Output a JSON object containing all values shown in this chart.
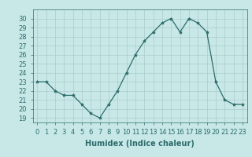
{
  "x": [
    0,
    1,
    2,
    3,
    4,
    5,
    6,
    7,
    8,
    9,
    10,
    11,
    12,
    13,
    14,
    15,
    16,
    17,
    18,
    19,
    20,
    21,
    22,
    23
  ],
  "y": [
    23,
    23,
    22,
    21.5,
    21.5,
    20.5,
    19.5,
    19,
    20.5,
    22,
    24,
    26,
    27.5,
    28.5,
    29.5,
    30,
    28.5,
    30,
    29.5,
    28.5,
    23,
    21,
    20.5,
    20.5
  ],
  "xlabel": "Humidex (Indice chaleur)",
  "ylim": [
    18.5,
    31
  ],
  "xlim": [
    -0.5,
    23.5
  ],
  "yticks": [
    19,
    20,
    21,
    22,
    23,
    24,
    25,
    26,
    27,
    28,
    29,
    30
  ],
  "xticks": [
    0,
    1,
    2,
    3,
    4,
    5,
    6,
    7,
    8,
    9,
    10,
    11,
    12,
    13,
    14,
    15,
    16,
    17,
    18,
    19,
    20,
    21,
    22,
    23
  ],
  "line_color": "#2d6b6b",
  "marker": "*",
  "marker_size": 3,
  "bg_color": "#c8e8e8",
  "grid_color": "#aacccc",
  "label_fontsize": 7,
  "tick_fontsize": 6
}
